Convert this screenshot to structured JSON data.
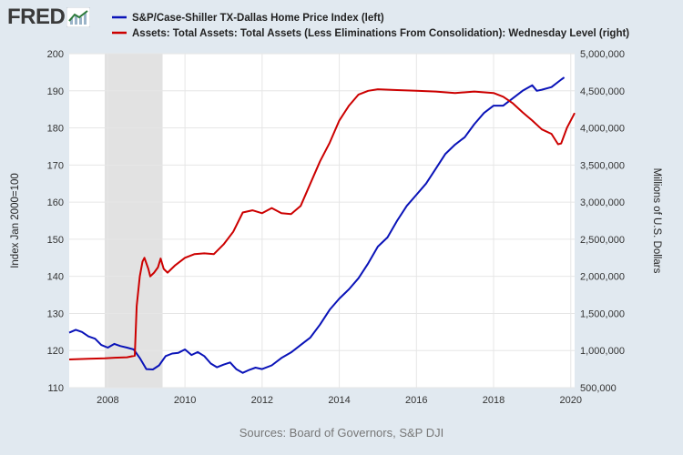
{
  "logo": {
    "text": "FRED",
    "icon": "trend-line-icon"
  },
  "source_note": "Sources: Board of Governors, S&P DJI",
  "colors": {
    "blue": "#0a13b8",
    "red": "#cc0000",
    "recession": "#e2e2e2",
    "background": "#e1e9f0",
    "plot": "#ffffff"
  },
  "chart_data": {
    "type": "line",
    "title": "",
    "xlabel": "",
    "ylabel_left": "Index Jan 2000=100",
    "ylabel_right": "Millions of U.S. Dollars",
    "xlim": [
      2007.0,
      2020.1
    ],
    "ylim_left": [
      110,
      200
    ],
    "ylim_right": [
      500000,
      5000000
    ],
    "x_ticks": [
      2008,
      2010,
      2012,
      2014,
      2016,
      2018,
      2020
    ],
    "x_tick_labels": [
      "2008",
      "2010",
      "2012",
      "2014",
      "2016",
      "2018",
      "2020"
    ],
    "y_left_ticks": [
      110,
      120,
      130,
      140,
      150,
      160,
      170,
      180,
      190,
      200
    ],
    "y_left_tick_labels": [
      "110",
      "120",
      "130",
      "140",
      "150",
      "160",
      "170",
      "180",
      "190",
      "200"
    ],
    "y_right_ticks": [
      500000,
      1000000,
      1500000,
      2000000,
      2500000,
      3000000,
      3500000,
      4000000,
      4500000,
      5000000
    ],
    "y_right_tick_labels": [
      "500,000",
      "1,000,000",
      "1,500,000",
      "2,000,000",
      "2,500,000",
      "3,000,000",
      "3,500,000",
      "4,000,000",
      "4,500,000",
      "5,000,000"
    ],
    "grid": true,
    "legend_position": "top",
    "recession": [
      2007.92,
      2009.42
    ],
    "series": [
      {
        "name": "S&P/Case-Shiller TX-Dallas Home Price Index (left)",
        "axis": "left",
        "color": "#0a13b8",
        "x": [
          2007.0,
          2007.17,
          2007.33,
          2007.5,
          2007.67,
          2007.83,
          2008.0,
          2008.17,
          2008.33,
          2008.5,
          2008.67,
          2008.83,
          2009.0,
          2009.17,
          2009.33,
          2009.5,
          2009.67,
          2009.83,
          2010.0,
          2010.17,
          2010.33,
          2010.5,
          2010.67,
          2010.83,
          2011.0,
          2011.17,
          2011.33,
          2011.5,
          2011.67,
          2011.83,
          2012.0,
          2012.25,
          2012.5,
          2012.75,
          2013.0,
          2013.25,
          2013.5,
          2013.75,
          2014.0,
          2014.25,
          2014.5,
          2014.75,
          2015.0,
          2015.25,
          2015.5,
          2015.75,
          2016.0,
          2016.25,
          2016.5,
          2016.75,
          2017.0,
          2017.25,
          2017.5,
          2017.75,
          2018.0,
          2018.25,
          2018.5,
          2018.75,
          2019.0,
          2019.12,
          2019.25,
          2019.5,
          2019.75,
          2019.83
        ],
        "y": [
          124.8,
          125.6,
          125.0,
          123.8,
          123.2,
          121.5,
          120.8,
          121.8,
          121.2,
          120.8,
          120.3,
          118.0,
          115.0,
          114.9,
          116.0,
          118.5,
          119.2,
          119.4,
          120.3,
          118.8,
          119.6,
          118.5,
          116.5,
          115.5,
          116.2,
          116.8,
          115.0,
          114.0,
          114.8,
          115.4,
          115.0,
          116.0,
          118.0,
          119.5,
          121.5,
          123.5,
          127.0,
          131.0,
          134.0,
          136.5,
          139.5,
          143.5,
          148.0,
          150.5,
          155.0,
          159.0,
          162.0,
          165.0,
          169.0,
          173.0,
          175.5,
          177.5,
          181.0,
          184.0,
          186.0,
          186.0,
          188.0,
          190.0,
          191.5,
          190.0,
          190.3,
          191.0,
          193.0,
          193.6
        ]
      },
      {
        "name": "Assets: Total Assets: Total Assets (Less Eliminations From Consolidation): Wednesday Level (right)",
        "axis": "right",
        "color": "#cc0000",
        "x": [
          2007.0,
          2007.5,
          2007.92,
          2008.25,
          2008.5,
          2008.7,
          2008.75,
          2008.83,
          2008.9,
          2008.95,
          2009.05,
          2009.1,
          2009.2,
          2009.3,
          2009.37,
          2009.45,
          2009.55,
          2009.75,
          2010.0,
          2010.25,
          2010.5,
          2010.75,
          2011.0,
          2011.25,
          2011.5,
          2011.75,
          2012.0,
          2012.25,
          2012.5,
          2012.75,
          2013.0,
          2013.25,
          2013.5,
          2013.75,
          2014.0,
          2014.25,
          2014.5,
          2014.75,
          2015.0,
          2015.5,
          2016.0,
          2016.5,
          2017.0,
          2017.5,
          2018.0,
          2018.25,
          2018.5,
          2018.75,
          2019.0,
          2019.25,
          2019.5,
          2019.67,
          2019.75,
          2019.9,
          2020.05,
          2020.1
        ],
        "y": [
          880000,
          890000,
          895000,
          905000,
          910000,
          930000,
          1600000,
          2000000,
          2200000,
          2250000,
          2100000,
          2000000,
          2050000,
          2120000,
          2240000,
          2100000,
          2050000,
          2150000,
          2250000,
          2300000,
          2310000,
          2300000,
          2430000,
          2600000,
          2860000,
          2890000,
          2850000,
          2920000,
          2850000,
          2840000,
          2950000,
          3250000,
          3550000,
          3800000,
          4100000,
          4300000,
          4450000,
          4500000,
          4520000,
          4510000,
          4500000,
          4490000,
          4470000,
          4490000,
          4470000,
          4420000,
          4330000,
          4210000,
          4100000,
          3980000,
          3920000,
          3780000,
          3790000,
          4000000,
          4150000,
          4200000
        ]
      }
    ]
  }
}
